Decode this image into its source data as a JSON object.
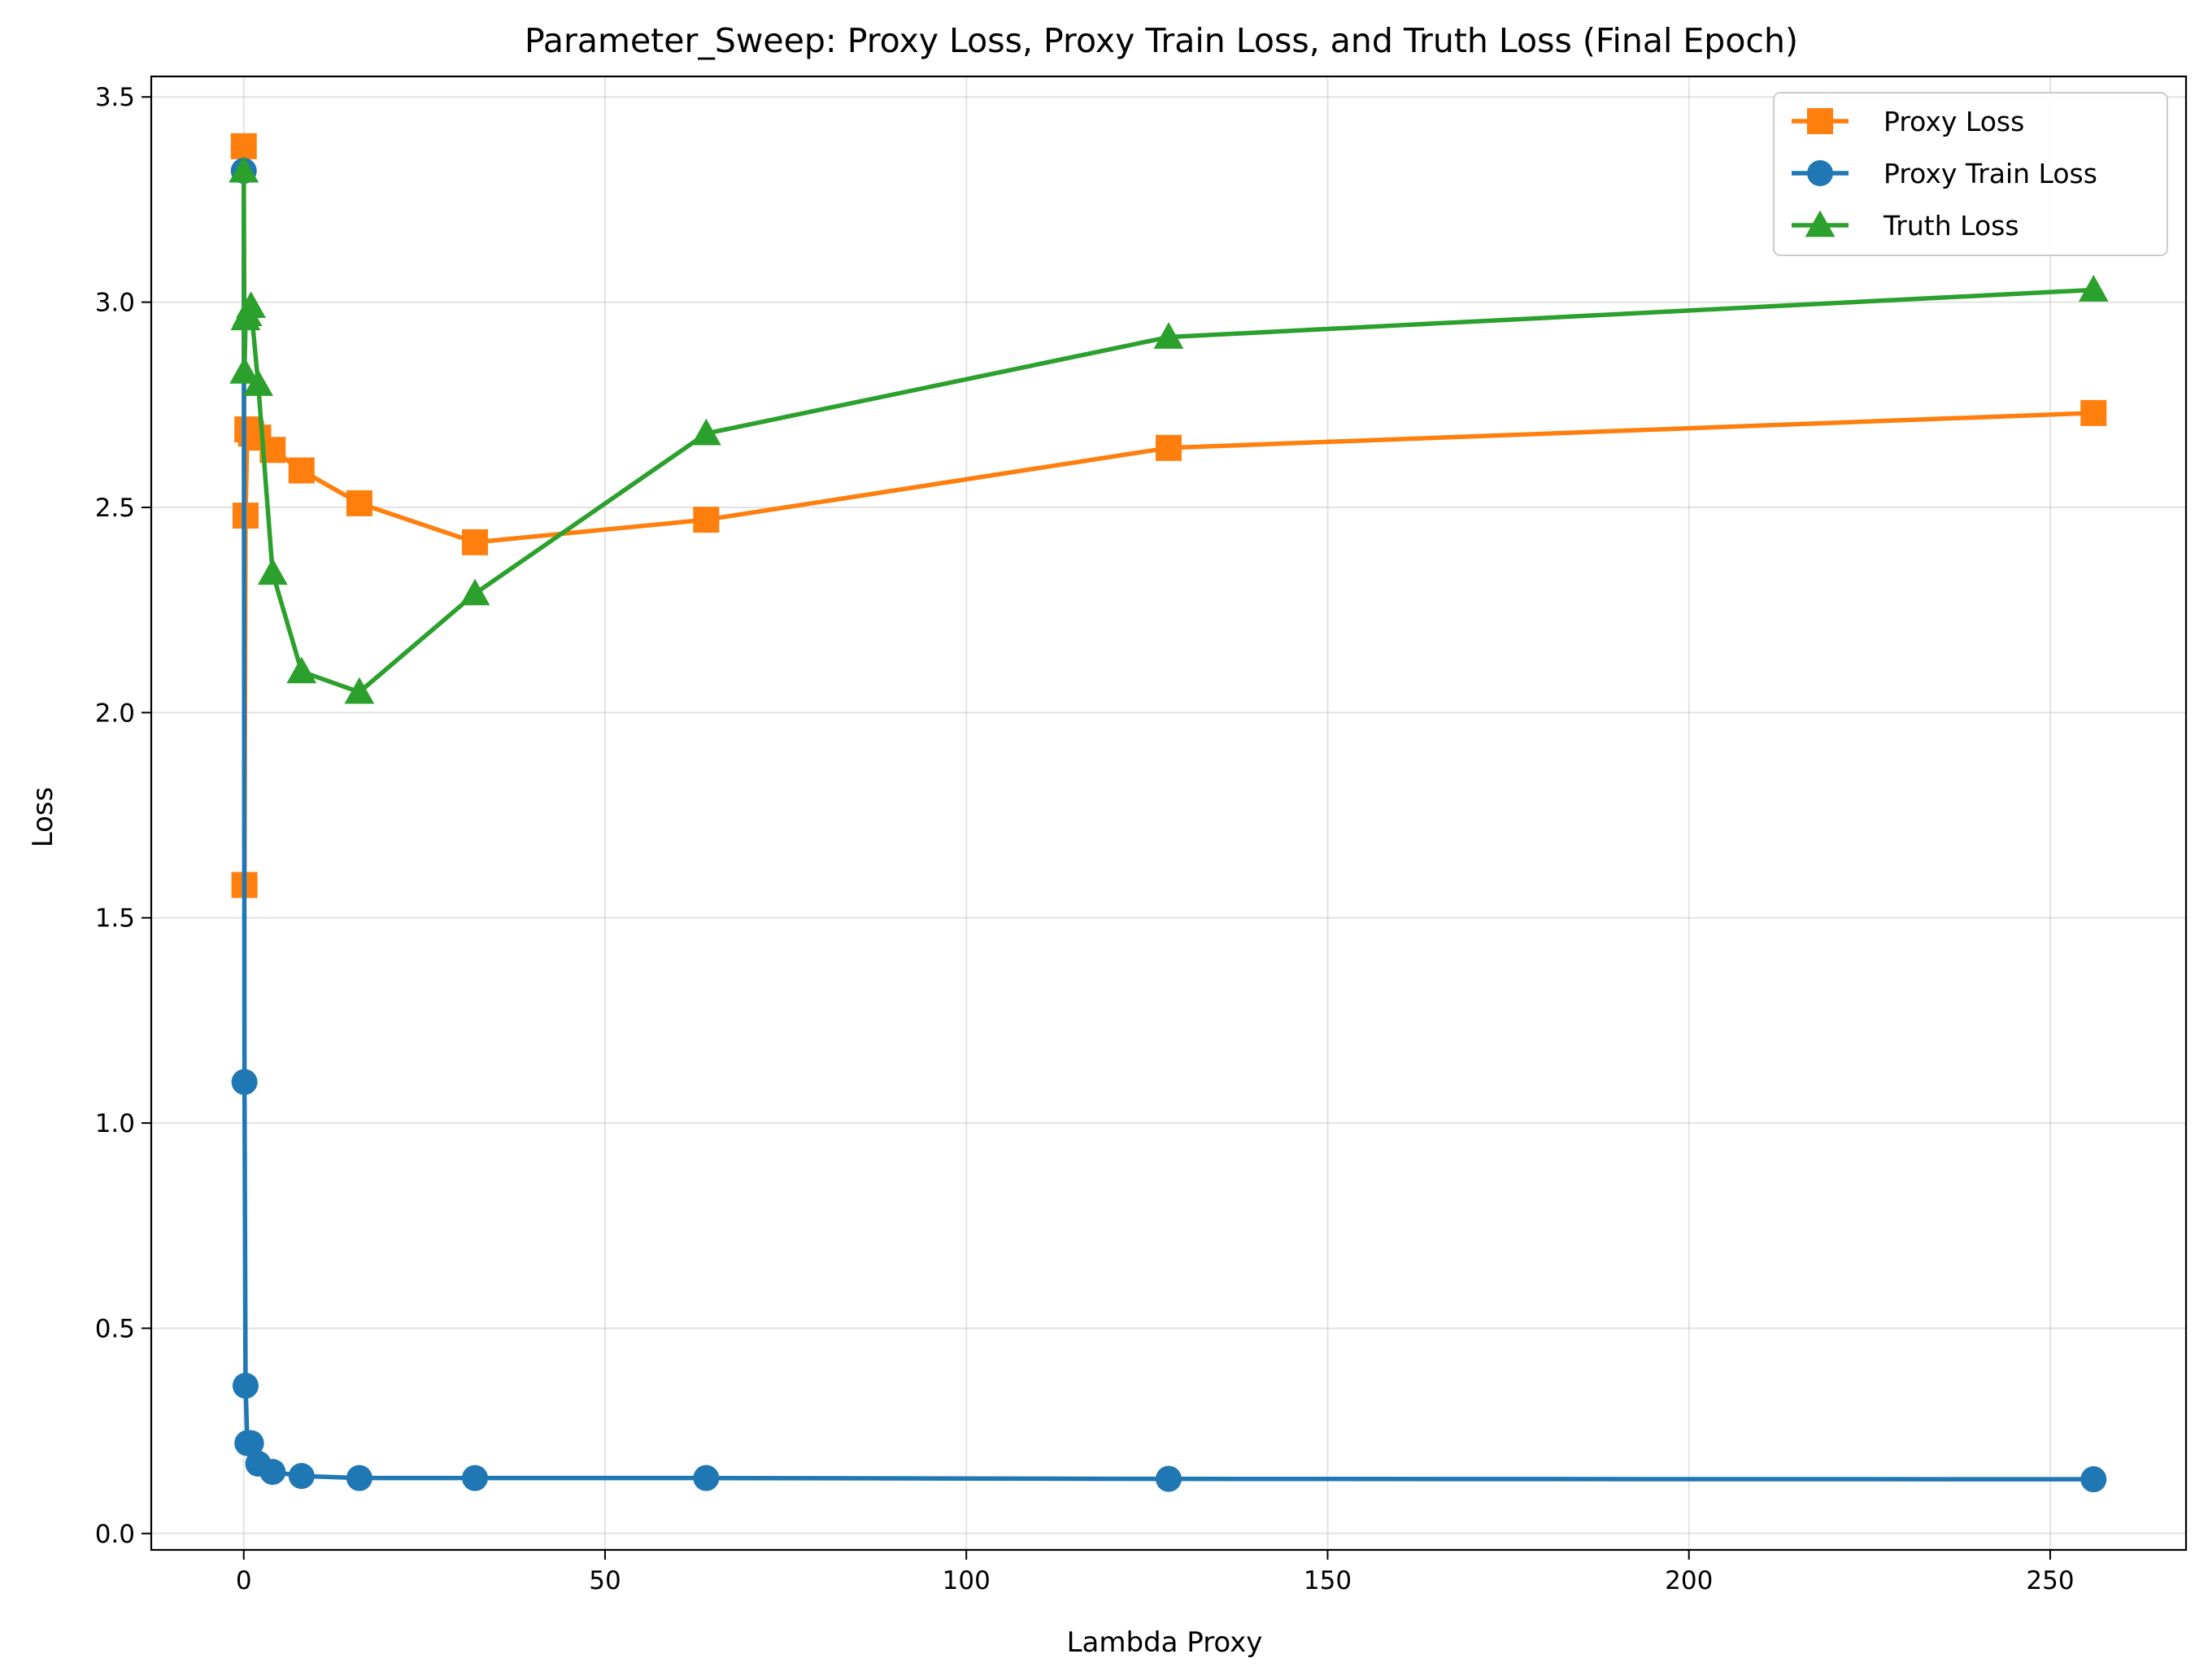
{
  "chart_data": {
    "type": "line",
    "title": "Parameter_Sweep: Proxy Loss, Proxy Train Loss, and Truth Loss (Final Epoch)",
    "xlabel": "Lambda Proxy",
    "ylabel": "Loss",
    "xlim": [
      -12.8,
      268.8
    ],
    "ylim": [
      -0.04,
      3.55
    ],
    "xticks": [
      0,
      50,
      100,
      150,
      200,
      250
    ],
    "yticks": [
      0.0,
      0.5,
      1.0,
      1.5,
      2.0,
      2.5,
      3.0,
      3.5
    ],
    "xtick_labels": [
      "0",
      "50",
      "100",
      "150",
      "200",
      "250"
    ],
    "ytick_labels": [
      "0.0",
      "0.5",
      "1.0",
      "1.5",
      "2.0",
      "2.5",
      "3.0",
      "3.5"
    ],
    "grid": true,
    "legend_position": "top-right",
    "series": [
      {
        "name": "Proxy Loss",
        "color": "#ff7f0e",
        "marker": "square",
        "x": [
          0,
          0.1,
          0.25,
          0.5,
          1,
          2,
          4,
          8,
          16,
          32,
          64,
          128,
          256
        ],
        "y": [
          3.38,
          1.58,
          2.48,
          2.69,
          2.68,
          2.67,
          2.64,
          2.59,
          2.51,
          2.415,
          2.47,
          2.645,
          2.73
        ]
      },
      {
        "name": "Proxy Train Loss",
        "color": "#1f77b4",
        "marker": "circle",
        "x": [
          0,
          0.1,
          0.25,
          0.5,
          1,
          2,
          4,
          8,
          16,
          32,
          64,
          128,
          256
        ],
        "y": [
          3.32,
          1.1,
          0.36,
          0.22,
          0.22,
          0.17,
          0.15,
          0.14,
          0.135,
          0.135,
          0.135,
          0.133,
          0.132
        ]
      },
      {
        "name": "Truth Loss",
        "color": "#2ca02c",
        "marker": "triangle",
        "x": [
          0,
          0.1,
          0.25,
          0.5,
          1,
          2,
          4,
          8,
          16,
          32,
          64,
          128,
          256
        ],
        "y": [
          3.32,
          2.83,
          2.96,
          2.97,
          2.99,
          2.8,
          2.34,
          2.1,
          2.05,
          2.29,
          2.68,
          2.915,
          3.03
        ]
      }
    ]
  }
}
